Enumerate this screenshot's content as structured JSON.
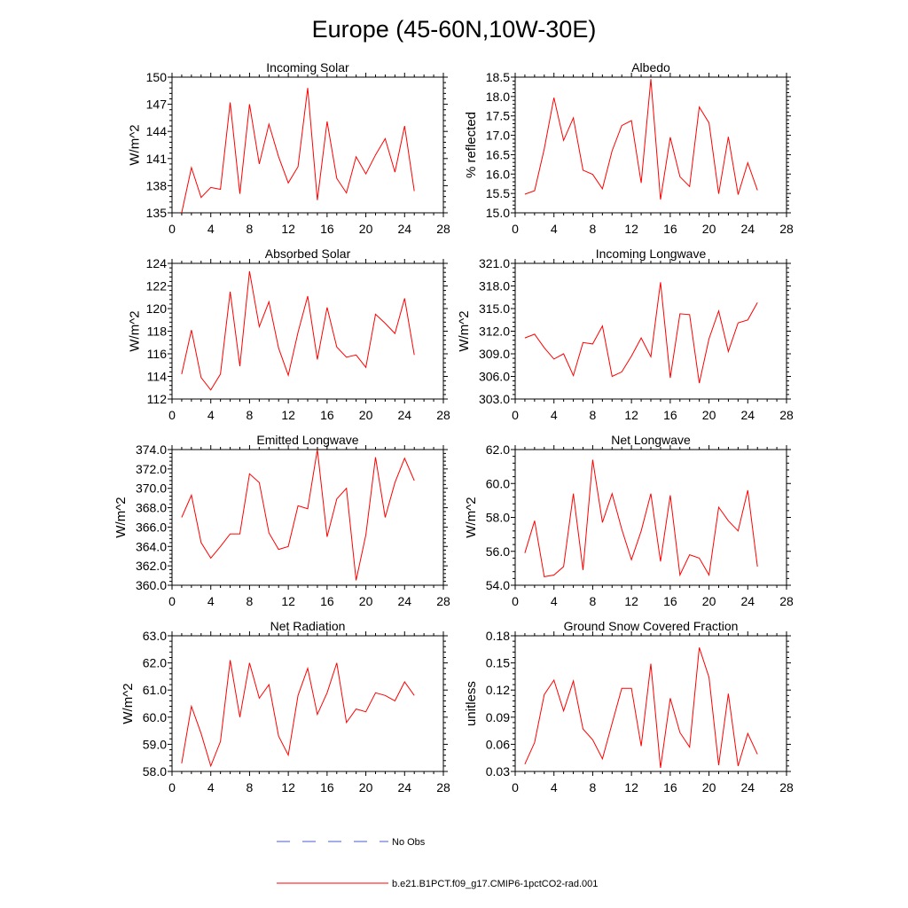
{
  "figure": {
    "title": "Europe (45-60N,10W-30E)"
  },
  "legend": [
    {
      "label": "No Obs",
      "color": "#4a5bd0",
      "style": "dashed"
    },
    {
      "label": "b.e21.B1PCT.f09_g17.CMIP6-1pctCO2-rad.001",
      "color": "#ff0000",
      "style": "solid"
    }
  ],
  "chart_data": [
    {
      "type": "line",
      "title": "Incoming Solar",
      "ylabel": "W/m^2",
      "xlabel": "",
      "xlim": [
        0,
        28
      ],
      "xticks": [
        0,
        4,
        8,
        12,
        16,
        20,
        24,
        28
      ],
      "ylim": [
        135,
        150
      ],
      "yticks": [
        "135",
        "138",
        "141",
        "144",
        "147",
        "150"
      ],
      "series": [
        {
          "color": "#ff0000",
          "x": [
            1,
            2,
            3,
            4,
            5,
            6,
            7,
            8,
            9,
            10,
            11,
            12,
            13,
            14,
            15,
            16,
            17,
            18,
            19,
            20,
            21,
            22,
            23,
            24,
            25
          ],
          "y": [
            135.0,
            140.0,
            136.7,
            137.8,
            137.6,
            147.2,
            137.1,
            147.0,
            140.4,
            144.8,
            141.2,
            138.3,
            140.1,
            148.8,
            136.4,
            145.1,
            138.8,
            137.2,
            141.2,
            139.3,
            141.4,
            143.2,
            139.5,
            144.6,
            137.4
          ]
        }
      ]
    },
    {
      "type": "line",
      "title": "Albedo",
      "ylabel": "% reflected",
      "xlabel": "",
      "xlim": [
        0,
        28
      ],
      "xticks": [
        0,
        4,
        8,
        12,
        16,
        20,
        24,
        28
      ],
      "ylim": [
        15.0,
        18.5
      ],
      "yticks": [
        "15.0",
        "15.5",
        "16.0",
        "16.5",
        "17.0",
        "17.5",
        "18.0",
        "18.5"
      ],
      "series": [
        {
          "color": "#ff0000",
          "x": [
            1,
            2,
            3,
            4,
            5,
            6,
            7,
            8,
            9,
            10,
            11,
            12,
            13,
            14,
            15,
            16,
            17,
            18,
            19,
            20,
            21,
            22,
            23,
            24,
            25
          ],
          "y": [
            15.48,
            15.57,
            16.65,
            17.97,
            16.87,
            17.45,
            16.1,
            15.99,
            15.62,
            16.6,
            17.25,
            17.38,
            15.77,
            18.45,
            15.34,
            16.95,
            15.93,
            15.68,
            17.73,
            17.32,
            15.49,
            16.96,
            15.47,
            16.29,
            15.58
          ]
        }
      ]
    },
    {
      "type": "line",
      "title": "Absorbed Solar",
      "ylabel": "W/m^2",
      "xlabel": "",
      "xlim": [
        0,
        28
      ],
      "xticks": [
        0,
        4,
        8,
        12,
        16,
        20,
        24,
        28
      ],
      "ylim": [
        112,
        124
      ],
      "yticks": [
        "112",
        "114",
        "116",
        "118",
        "120",
        "122",
        "124"
      ],
      "series": [
        {
          "color": "#ff0000",
          "x": [
            1,
            2,
            3,
            4,
            5,
            6,
            7,
            8,
            9,
            10,
            11,
            12,
            13,
            14,
            15,
            16,
            17,
            18,
            19,
            20,
            21,
            22,
            23,
            24,
            25
          ],
          "y": [
            114.2,
            118.1,
            113.9,
            112.8,
            114.2,
            121.5,
            114.9,
            123.3,
            118.4,
            120.6,
            116.5,
            114.1,
            117.9,
            121.1,
            115.5,
            120.1,
            116.6,
            115.7,
            115.9,
            114.8,
            119.5,
            118.7,
            117.8,
            120.9,
            115.9
          ]
        }
      ]
    },
    {
      "type": "line",
      "title": "Incoming Longwave",
      "ylabel": "W/m^2",
      "xlabel": "",
      "xlim": [
        0,
        28
      ],
      "xticks": [
        0,
        4,
        8,
        12,
        16,
        20,
        24,
        28
      ],
      "ylim": [
        303.0,
        321.0
      ],
      "yticks": [
        "303.0",
        "306.0",
        "309.0",
        "312.0",
        "315.0",
        "318.0",
        "321.0"
      ],
      "series": [
        {
          "color": "#ff0000",
          "x": [
            1,
            2,
            3,
            4,
            5,
            6,
            7,
            8,
            9,
            10,
            11,
            12,
            13,
            14,
            15,
            16,
            17,
            18,
            19,
            20,
            21,
            22,
            23,
            24,
            25
          ],
          "y": [
            311.1,
            311.6,
            309.8,
            308.3,
            309.0,
            306.1,
            310.5,
            310.3,
            312.7,
            306.0,
            306.6,
            308.7,
            311.1,
            308.6,
            318.5,
            305.8,
            314.3,
            314.2,
            305.1,
            311.0,
            314.7,
            309.3,
            313.1,
            313.5,
            315.8
          ]
        }
      ]
    },
    {
      "type": "line",
      "title": "Emitted Longwave",
      "ylabel": "W/m^2",
      "xlabel": "",
      "xlim": [
        0,
        28
      ],
      "xticks": [
        0,
        4,
        8,
        12,
        16,
        20,
        24,
        28
      ],
      "ylim": [
        360.0,
        374.0
      ],
      "yticks": [
        "360.0",
        "362.0",
        "364.0",
        "366.0",
        "368.0",
        "370.0",
        "372.0",
        "374.0"
      ],
      "series": [
        {
          "color": "#ff0000",
          "x": [
            1,
            2,
            3,
            4,
            5,
            6,
            7,
            8,
            9,
            10,
            11,
            12,
            13,
            14,
            15,
            16,
            17,
            18,
            19,
            20,
            21,
            22,
            23,
            24,
            25
          ],
          "y": [
            367.0,
            369.3,
            364.4,
            362.8,
            364.0,
            365.3,
            365.3,
            371.5,
            370.6,
            365.4,
            363.7,
            364.0,
            368.2,
            367.9,
            374.0,
            365.0,
            368.9,
            370.0,
            360.5,
            365.2,
            373.2,
            367.0,
            370.6,
            373.1,
            370.8
          ]
        }
      ]
    },
    {
      "type": "line",
      "title": "Net Longwave",
      "ylabel": "W/m^2",
      "xlabel": "",
      "xlim": [
        0,
        28
      ],
      "xticks": [
        0,
        4,
        8,
        12,
        16,
        20,
        24,
        28
      ],
      "ylim": [
        54.0,
        62.0
      ],
      "yticks": [
        "54.0",
        "56.0",
        "58.0",
        "60.0",
        "62.0"
      ],
      "series": [
        {
          "color": "#ff0000",
          "x": [
            1,
            2,
            3,
            4,
            5,
            6,
            7,
            8,
            9,
            10,
            11,
            12,
            13,
            14,
            15,
            16,
            17,
            18,
            19,
            20,
            21,
            22,
            23,
            24,
            25
          ],
          "y": [
            55.9,
            57.8,
            54.5,
            54.6,
            55.1,
            59.4,
            54.9,
            61.4,
            57.7,
            59.4,
            57.3,
            55.5,
            57.2,
            59.4,
            55.4,
            59.3,
            54.6,
            55.8,
            55.6,
            54.6,
            58.6,
            57.8,
            57.2,
            59.6,
            55.1
          ]
        }
      ]
    },
    {
      "type": "line",
      "title": "Net Radiation",
      "ylabel": "W/m^2",
      "xlabel": "",
      "xlim": [
        0,
        28
      ],
      "xticks": [
        0,
        4,
        8,
        12,
        16,
        20,
        24,
        28
      ],
      "ylim": [
        58.0,
        63.0
      ],
      "yticks": [
        "58.0",
        "59.0",
        "60.0",
        "61.0",
        "62.0",
        "63.0"
      ],
      "series": [
        {
          "color": "#ff0000",
          "x": [
            1,
            2,
            3,
            4,
            5,
            6,
            7,
            8,
            9,
            10,
            11,
            12,
            13,
            14,
            15,
            16,
            17,
            18,
            19,
            20,
            21,
            22,
            23,
            24,
            25
          ],
          "y": [
            58.3,
            60.4,
            59.4,
            58.2,
            59.1,
            62.1,
            60.0,
            62.0,
            60.7,
            61.2,
            59.3,
            58.6,
            60.8,
            61.8,
            60.1,
            60.9,
            62.0,
            59.8,
            60.3,
            60.2,
            60.9,
            60.8,
            60.6,
            61.3,
            60.8
          ]
        }
      ]
    },
    {
      "type": "line",
      "title": "Ground Snow Covered Fraction",
      "ylabel": "unitless",
      "xlabel": "",
      "xlim": [
        0,
        28
      ],
      "xticks": [
        0,
        4,
        8,
        12,
        16,
        20,
        24,
        28
      ],
      "ylim": [
        0.03,
        0.18
      ],
      "yticks": [
        "0.03",
        "0.06",
        "0.09",
        "0.12",
        "0.15",
        "0.18"
      ],
      "series": [
        {
          "color": "#ff0000",
          "x": [
            1,
            2,
            3,
            4,
            5,
            6,
            7,
            8,
            9,
            10,
            11,
            12,
            13,
            14,
            15,
            16,
            17,
            18,
            19,
            20,
            21,
            22,
            23,
            24,
            25
          ],
          "y": [
            0.038,
            0.062,
            0.115,
            0.131,
            0.097,
            0.13,
            0.077,
            0.065,
            0.044,
            0.083,
            0.122,
            0.122,
            0.058,
            0.149,
            0.034,
            0.111,
            0.073,
            0.057,
            0.167,
            0.134,
            0.037,
            0.116,
            0.036,
            0.072,
            0.049
          ]
        }
      ]
    }
  ]
}
